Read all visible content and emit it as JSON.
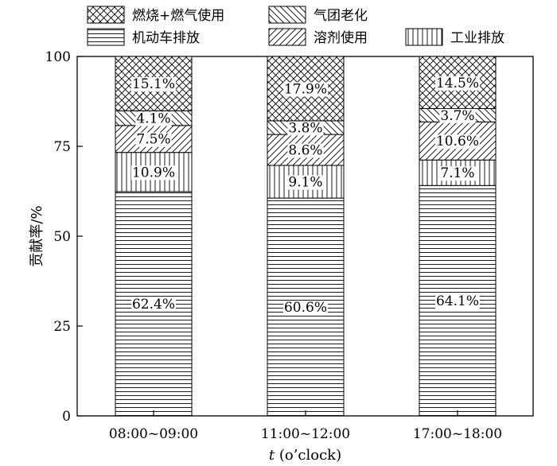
{
  "chart_data": {
    "type": "bar",
    "stacked": true,
    "categories": [
      "08:00~09:00",
      "11:00~12:00",
      "17:00~18:00"
    ],
    "series": [
      {
        "name": "机动车排放",
        "values": [
          62.4,
          60.6,
          64.1
        ],
        "pattern": "hlines"
      },
      {
        "name": "工业排放",
        "values": [
          10.9,
          9.1,
          7.1
        ],
        "pattern": "vlines"
      },
      {
        "name": "溶剂使用",
        "values": [
          7.5,
          8.6,
          10.6
        ],
        "pattern": "fdiag"
      },
      {
        "name": "气团老化",
        "values": [
          4.1,
          3.8,
          3.7
        ],
        "pattern": "bdiag"
      },
      {
        "name": "燃烧+燃气使用",
        "values": [
          15.1,
          17.9,
          14.5
        ],
        "pattern": "cross"
      }
    ],
    "data_labels": [
      [
        "62.4%",
        "60.6%",
        "64.1%"
      ],
      [
        "10.9%",
        "9.1%",
        "7.1%"
      ],
      [
        "7.5%",
        "8.6%",
        "10.6%"
      ],
      [
        "4.1%",
        "3.8%",
        "3.7%"
      ],
      [
        "15.1%",
        "17.9%",
        "14.5%"
      ]
    ],
    "legend_order": [
      "燃烧+燃气使用",
      "气团老化",
      "机动车排放",
      "溶剂使用",
      "工业排放"
    ],
    "legend_position": "top",
    "ylabel": "贡献率/%",
    "xlabel_italic": "t",
    "xlabel_rest": " (o’clock)",
    "ylim": [
      0,
      100
    ],
    "yticks": [
      0,
      25,
      50,
      75,
      100
    ],
    "grid": false,
    "bar_fill": "#ffffff",
    "line_color": "#000000"
  }
}
